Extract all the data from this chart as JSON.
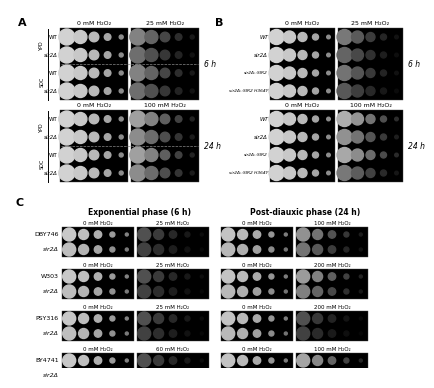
{
  "fig_width": 4.0,
  "fig_height": 3.58,
  "panel_A": {
    "label": "A",
    "row_labels_top": [
      "WT",
      "sir2Δ",
      "WT",
      "sir2Δ"
    ],
    "row_labels_bot": [
      "WT",
      "sir2Δ",
      "WT",
      "sir2Δ"
    ],
    "medium_top": [
      "YPD",
      "SDC"
    ],
    "top_headers": [
      "0 mM H₂O₂",
      "25 mM H₂O₂"
    ],
    "bot_headers": [
      "0 mM H₂O₂",
      "100 mM H₂O₂"
    ],
    "time_top": "6 h",
    "time_bot": "24 h"
  },
  "panel_B": {
    "label": "B",
    "row_labels": [
      "WT",
      "sir2Δ",
      "sir2Δ::SIR2",
      "sir2Δ::SIR2 H364Y"
    ],
    "top_headers": [
      "0 mM H₂O₂",
      "25 mM H₂O₂"
    ],
    "bot_headers": [
      "0 mM H₂O₂",
      "100 mM H₂O₂"
    ],
    "time_top": "6 h",
    "time_bot": "24 h"
  },
  "panel_C": {
    "label": "C",
    "col_headers": [
      "Exponential phase (6 h)",
      "Post-diauxic phase (24 h)"
    ],
    "strains": [
      {
        "name": "DBY746",
        "exp_h": [
          "0 mM H₂O₂",
          "25 mM H₂O₂"
        ],
        "post_h": [
          "0 mM H₂O₂",
          "100 mM H₂O₂"
        ]
      },
      {
        "name": "W303",
        "exp_h": [
          "0 mM H₂O₂",
          "25 mM H₂O₂"
        ],
        "post_h": [
          "0 mM H₂O₂",
          "200 mM H₂O₂"
        ]
      },
      {
        "name": "PSY316",
        "exp_h": [
          "0 mM H₂O₂",
          "25 mM H₂O₂"
        ],
        "post_h": [
          "0 mM H₂O₂",
          "200 mM H₂O₂"
        ]
      },
      {
        "name": "BY4741",
        "exp_h": [
          "0 mM H₂O₂",
          "60 mM H₂O₂"
        ],
        "post_h": [
          "0 mM H₂O₂",
          "100 mM H₂O₂"
        ]
      }
    ]
  }
}
